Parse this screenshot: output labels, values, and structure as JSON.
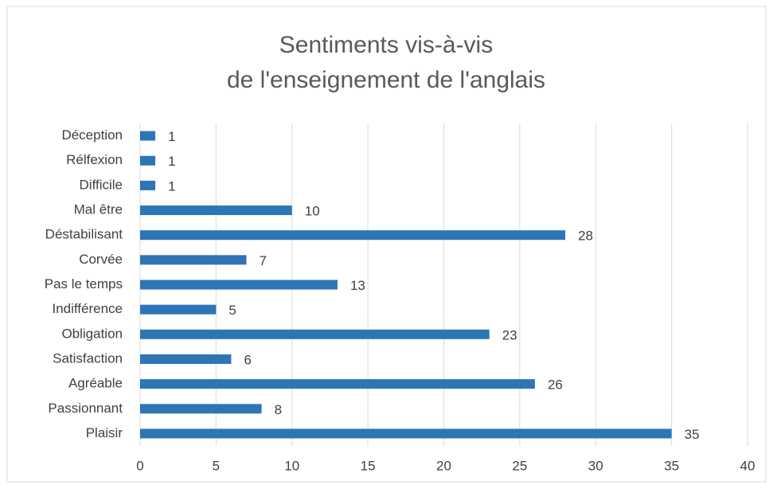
{
  "chart_data": {
    "type": "barh",
    "title": [
      "Sentiments vis-à-vis",
      "de l'enseignement de l'anglais"
    ],
    "categories": [
      "Plaisir",
      "Passionnant",
      "Agréable",
      "Satisfaction",
      "Obligation",
      "Indifférence",
      "Pas le temps",
      "Corvée",
      "Déstabilisant",
      "Mal être",
      "Difficile",
      "Rélfexion",
      "Déception"
    ],
    "values": [
      35,
      8,
      26,
      6,
      23,
      5,
      13,
      7,
      28,
      10,
      1,
      1,
      1
    ],
    "color": "#2e75b6",
    "xlim": [
      0,
      40
    ],
    "xticks": [
      0,
      5,
      10,
      15,
      20,
      25,
      30,
      35,
      40
    ],
    "grid": true
  }
}
